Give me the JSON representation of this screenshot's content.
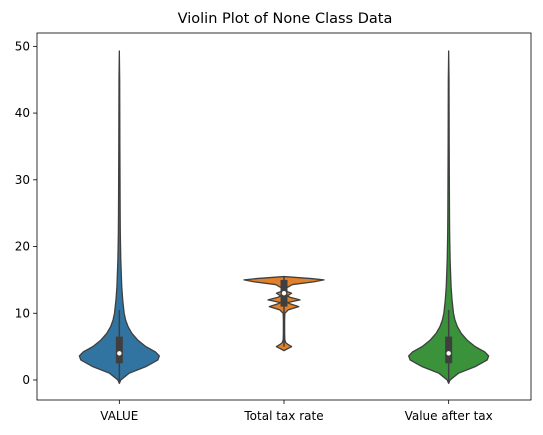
{
  "chart_data": {
    "type": "violin",
    "title": "Violin Plot of None Class Data",
    "xlabel": "",
    "ylabel": "",
    "categories": [
      "VALUE",
      "Total tax rate",
      "Value after tax"
    ],
    "ylim": [
      -3,
      52
    ],
    "yticks": [
      0,
      10,
      20,
      30,
      40,
      50
    ],
    "grid": false,
    "legend": "none",
    "series": [
      {
        "category": "VALUE",
        "color": "#3274a1",
        "min": -0.5,
        "q1": 2.5,
        "median": 4,
        "q3": 6.5,
        "whisker_high": 10.5,
        "max": 49.3,
        "density": [
          [
            -0.5,
            0
          ],
          [
            0,
            0.03
          ],
          [
            1,
            0.2
          ],
          [
            2,
            0.55
          ],
          [
            3,
            0.8
          ],
          [
            3.6,
            0.83
          ],
          [
            4.2,
            0.75
          ],
          [
            5,
            0.55
          ],
          [
            6,
            0.38
          ],
          [
            7,
            0.26
          ],
          [
            8,
            0.18
          ],
          [
            9,
            0.13
          ],
          [
            10,
            0.1
          ],
          [
            12,
            0.07
          ],
          [
            14,
            0.05
          ],
          [
            16,
            0.04
          ],
          [
            18,
            0.03
          ],
          [
            20,
            0.025
          ],
          [
            22,
            0.02
          ],
          [
            25,
            0.017
          ],
          [
            30,
            0.014
          ],
          [
            35,
            0.011
          ],
          [
            40,
            0.009
          ],
          [
            45,
            0.007
          ],
          [
            49.3,
            0
          ]
        ]
      },
      {
        "category": "Total tax rate",
        "color": "#e1812c",
        "min": 4.5,
        "q1": 11,
        "median": 13,
        "q3": 15,
        "whisker_high": 15.5,
        "max": 15.5,
        "density": [
          [
            4.4,
            0
          ],
          [
            4.8,
            0.12
          ],
          [
            5,
            0.18
          ],
          [
            5.3,
            0.1
          ],
          [
            5.6,
            0.04
          ],
          [
            6,
            0.02
          ],
          [
            7,
            0.015
          ],
          [
            8,
            0.015
          ],
          [
            9,
            0.015
          ],
          [
            10,
            0.02
          ],
          [
            10.5,
            0.1
          ],
          [
            11,
            0.35
          ],
          [
            11.4,
            0.15
          ],
          [
            11.6,
            0.08
          ],
          [
            12,
            0.38
          ],
          [
            12.4,
            0.14
          ],
          [
            12.6,
            0.08
          ],
          [
            13,
            0.18
          ],
          [
            13.3,
            0.05
          ],
          [
            13.7,
            0.03
          ],
          [
            14.3,
            0.2
          ],
          [
            14.7,
            0.7
          ],
          [
            15,
            0.95
          ],
          [
            15.2,
            0.65
          ],
          [
            15.5,
            0
          ]
        ]
      },
      {
        "category": "Value after tax",
        "color": "#3a923a",
        "min": -0.5,
        "q1": 2.5,
        "median": 4,
        "q3": 6.5,
        "whisker_high": 10.5,
        "max": 49.3,
        "density": [
          [
            -0.5,
            0
          ],
          [
            0,
            0.03
          ],
          [
            1,
            0.2
          ],
          [
            2,
            0.55
          ],
          [
            3,
            0.8
          ],
          [
            3.6,
            0.83
          ],
          [
            4.2,
            0.75
          ],
          [
            5,
            0.55
          ],
          [
            6,
            0.38
          ],
          [
            7,
            0.26
          ],
          [
            8,
            0.18
          ],
          [
            9,
            0.13
          ],
          [
            10,
            0.1
          ],
          [
            12,
            0.07
          ],
          [
            14,
            0.05
          ],
          [
            16,
            0.04
          ],
          [
            18,
            0.03
          ],
          [
            20,
            0.025
          ],
          [
            22,
            0.02
          ],
          [
            25,
            0.017
          ],
          [
            30,
            0.014
          ],
          [
            35,
            0.011
          ],
          [
            40,
            0.009
          ],
          [
            45,
            0.007
          ],
          [
            49.3,
            0
          ]
        ]
      }
    ]
  }
}
